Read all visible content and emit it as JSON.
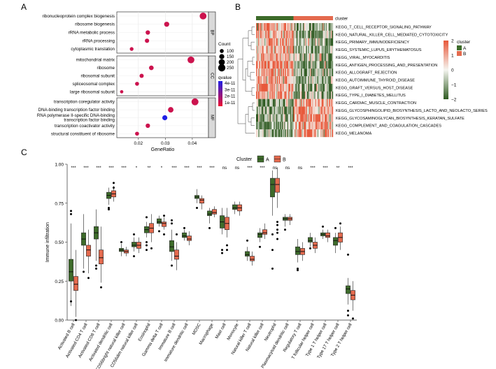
{
  "panels": {
    "a": "A",
    "b": "B",
    "c": "C"
  },
  "colors": {
    "group_a": "#3d6b2a",
    "group_b": "#e46a4e",
    "heat_low": "#2f5b22",
    "heat_mid": "#f5f5f0",
    "heat_high": "#e8583a",
    "qvalue_low": "#1f1fe6",
    "qvalue_high": "#ee1030",
    "strip_bg": "#d9d9d9"
  },
  "chart_data": [
    {
      "type": "scatter",
      "id": "go-dotplot",
      "xlabel": "GeneRatio",
      "xlim": [
        0.012,
        0.046
      ],
      "xticks": [
        0.02,
        0.03,
        0.04
      ],
      "xtick_labels": [
        "0.02",
        "0.03",
        "0.04"
      ],
      "facets": [
        {
          "name": "BP",
          "terms": [
            {
              "label": "ribonucleoprotein complex biogenesis",
              "x": 0.044,
              "count": 230,
              "qvalue": 1.5e-11
            },
            {
              "label": "ribosome biogenesis",
              "x": 0.0305,
              "count": 150,
              "qvalue": 1.5e-11
            },
            {
              "label": "rRNA metabolic process",
              "x": 0.0235,
              "count": 120,
              "qvalue": 1.5e-11
            },
            {
              "label": "rRNA processing",
              "x": 0.0232,
              "count": 115,
              "qvalue": 1.5e-11
            },
            {
              "label": "cytoplasmic translation",
              "x": 0.0175,
              "count": 90,
              "qvalue": 1.5e-11
            }
          ]
        },
        {
          "name": "CC",
          "terms": [
            {
              "label": "mitochondrial matrix",
              "x": 0.0395,
              "count": 230,
              "qvalue": 1.5e-11
            },
            {
              "label": "ribosome",
              "x": 0.0248,
              "count": 130,
              "qvalue": 1.5e-11
            },
            {
              "label": "ribosomal subunit",
              "x": 0.0212,
              "count": 110,
              "qvalue": 1.5e-11
            },
            {
              "label": "spliceosomal complex",
              "x": 0.0195,
              "count": 100,
              "qvalue": 1.5e-11
            },
            {
              "label": "large ribosomal subunit",
              "x": 0.0138,
              "count": 70,
              "qvalue": 1.5e-11
            }
          ]
        },
        {
          "name": "MF",
          "terms": [
            {
              "label": "transcription coregulator activity",
              "x": 0.041,
              "count": 235,
              "qvalue": 1.5e-11
            },
            {
              "label": "DNA-binding transcription factor binding",
              "x": 0.032,
              "count": 170,
              "qvalue": 1.5e-11
            },
            {
              "label": "RNA polymerase II-specific DNA-binding transcription factor binding",
              "x": 0.0298,
              "count": 150,
              "qvalue": 4.2e-11
            },
            {
              "label": "transcription coactivator activity",
              "x": 0.0235,
              "count": 120,
              "qvalue": 1.5e-11
            },
            {
              "label": "structural constituent of ribosome",
              "x": 0.0195,
              "count": 100,
              "qvalue": 1.5e-11
            }
          ]
        }
      ],
      "size_legend": {
        "title": "Count",
        "values": [
          100,
          150,
          200,
          250
        ],
        "labels": [
          "100",
          "150",
          "200",
          "250"
        ]
      },
      "color_legend": {
        "title": "qvalue",
        "labels": [
          "4e-11",
          "3e-11",
          "2e-11",
          "1e-11"
        ]
      }
    },
    {
      "type": "heatmap",
      "id": "kegg-heatmap",
      "title": "cluster",
      "column_groups": [
        {
          "name": "A",
          "samples": 36
        },
        {
          "name": "B",
          "samples": 38
        }
      ],
      "rows": [
        {
          "label": "KEGG_T_CELL_RECEPTOR_SIGNALING_PATHWAY",
          "a_mean": 0.5,
          "b_mean": -0.45
        },
        {
          "label": "KEGG_NATURAL_KILLER_CELL_MEDIATED_CYTOTOXICITY",
          "a_mean": 0.55,
          "b_mean": -0.5
        },
        {
          "label": "KEGG_PRIMARY_IMMUNODEFICIENCY",
          "a_mean": 0.5,
          "b_mean": -0.45
        },
        {
          "label": "KEGG_SYSTEMIC_LUPUS_ERYTHEMATOSUS",
          "a_mean": 0.45,
          "b_mean": -0.4
        },
        {
          "label": "KEGG_VIRAL_MYOCARDITIS",
          "a_mean": 0.5,
          "b_mean": -0.45
        },
        {
          "label": "KEGG_ANTIGEN_PROCESSING_AND_PRESENTATION",
          "a_mean": 0.55,
          "b_mean": -0.5
        },
        {
          "label": "KEGG_ALLOGRAFT_REJECTION",
          "a_mean": 0.55,
          "b_mean": -0.5
        },
        {
          "label": "KEGG_AUTOIMMUNE_THYROID_DISEASE",
          "a_mean": 0.5,
          "b_mean": -0.45
        },
        {
          "label": "KEGG_GRAFT_VERSUS_HOST_DISEASE",
          "a_mean": 0.55,
          "b_mean": -0.5
        },
        {
          "label": "KEGG_TYPE_I_DIABETES_MELLITUS",
          "a_mean": 0.5,
          "b_mean": -0.45
        },
        {
          "label": "KEGG_CARDIAC_MUSCLE_CONTRACTION",
          "a_mean": -0.5,
          "b_mean": 0.45
        },
        {
          "label": "KEGG_GLYCOSPHINGOLIPID_BIOSYNTHESIS_LACTO_AND_NEOLACTO_SERIES",
          "a_mean": -0.45,
          "b_mean": 0.4
        },
        {
          "label": "KEGG_GLYCOSAMINOGLYCAN_BIOSYNTHESIS_KERATAN_SULFATE",
          "a_mean": -0.5,
          "b_mean": 0.45
        },
        {
          "label": "KEGG_COMPLEMENT_AND_COAGULATION_CASCADES",
          "a_mean": -0.45,
          "b_mean": 0.4
        },
        {
          "label": "KEGG_MELANOMA",
          "a_mean": -0.5,
          "b_mean": 0.45
        }
      ],
      "colorbar": {
        "min": -2,
        "max": 2,
        "ticks": [
          2,
          1,
          0,
          -1,
          -2
        ],
        "tick_labels": [
          "2",
          "1",
          "0",
          "−1",
          "−2"
        ]
      },
      "legend": {
        "title": "cluster",
        "items": [
          "A",
          "B"
        ]
      }
    },
    {
      "type": "box",
      "id": "immune-boxplot",
      "ylabel": "Immune infiltration",
      "ylim": [
        0,
        1
      ],
      "yticks": [
        0,
        0.25,
        0.5,
        0.75,
        1
      ],
      "ytick_labels": [
        "0.00",
        "0.25",
        "0.50",
        "0.75",
        "1.00"
      ],
      "legend": {
        "title": "Cluster",
        "items": [
          "A",
          "B"
        ]
      },
      "categories": [
        {
          "label": "Activated B cell",
          "sig": "***",
          "A": {
            "q1": 0.25,
            "med": 0.31,
            "q3": 0.39,
            "lo": 0.09,
            "hi": 0.62,
            "out": [
              0.68,
              0.7,
              0.12
            ]
          },
          "B": {
            "q1": 0.19,
            "med": 0.23,
            "q3": 0.28,
            "lo": 0.02,
            "hi": 0.45,
            "out": [
              0.0
            ]
          }
        },
        {
          "label": "Activated CD4 T cell",
          "sig": "***",
          "A": {
            "q1": 0.48,
            "med": 0.52,
            "q3": 0.56,
            "lo": 0.33,
            "hi": 0.68,
            "out": [
              0.31
            ]
          },
          "B": {
            "q1": 0.41,
            "med": 0.45,
            "q3": 0.48,
            "lo": 0.3,
            "hi": 0.58,
            "out": [
              0.27
            ]
          }
        },
        {
          "label": "Activated CD8 T cell",
          "sig": "***",
          "A": {
            "q1": 0.52,
            "med": 0.56,
            "q3": 0.6,
            "lo": 0.38,
            "hi": 0.71,
            "out": [
              0.33,
              0.35
            ]
          },
          "B": {
            "q1": 0.36,
            "med": 0.4,
            "q3": 0.45,
            "lo": 0.24,
            "hi": 0.6,
            "out": [
              0.21
            ]
          }
        },
        {
          "label": "Activated dendritic cell",
          "sig": "***",
          "A": {
            "q1": 0.78,
            "med": 0.8,
            "q3": 0.82,
            "lo": 0.74,
            "hi": 0.85,
            "out": [
              0.72,
              0.71
            ]
          },
          "B": {
            "q1": 0.79,
            "med": 0.81,
            "q3": 0.83,
            "lo": 0.76,
            "hi": 0.86,
            "out": [
              0.88,
              0.85
            ]
          }
        },
        {
          "label": "CD56bright natural killer cell",
          "sig": "***",
          "A": {
            "q1": 0.44,
            "med": 0.45,
            "q3": 0.46,
            "lo": 0.41,
            "hi": 0.49,
            "out": [
              0.5
            ]
          },
          "B": {
            "q1": 0.43,
            "med": 0.44,
            "q3": 0.45,
            "lo": 0.41,
            "hi": 0.47,
            "out": []
          }
        },
        {
          "label": "CD56dim natural killer cell",
          "sig": "*",
          "A": {
            "q1": 0.47,
            "med": 0.48,
            "q3": 0.5,
            "lo": 0.44,
            "hi": 0.53,
            "out": [
              0.55,
              0.41
            ]
          },
          "B": {
            "q1": 0.46,
            "med": 0.48,
            "q3": 0.5,
            "lo": 0.43,
            "hi": 0.53,
            "out": []
          }
        },
        {
          "label": "Eosinophil",
          "sig": "**",
          "A": {
            "q1": 0.56,
            "med": 0.58,
            "q3": 0.6,
            "lo": 0.53,
            "hi": 0.63,
            "out": [
              0.45,
              0.48,
              0.5,
              0.66
            ]
          },
          "B": {
            "q1": 0.56,
            "med": 0.59,
            "q3": 0.62,
            "lo": 0.5,
            "hi": 0.68,
            "out": [
              0.46
            ]
          }
        },
        {
          "label": "Gamma delta T cell",
          "sig": "*",
          "A": {
            "q1": 0.62,
            "med": 0.63,
            "q3": 0.65,
            "lo": 0.6,
            "hi": 0.67,
            "out": [
              0.57
            ]
          },
          "B": {
            "q1": 0.6,
            "med": 0.62,
            "q3": 0.63,
            "lo": 0.58,
            "hi": 0.66,
            "out": [
              0.55,
              0.67
            ]
          }
        },
        {
          "label": "Immature  B cell",
          "sig": "***",
          "A": {
            "q1": 0.44,
            "med": 0.47,
            "q3": 0.51,
            "lo": 0.38,
            "hi": 0.58,
            "out": [
              0.64,
              0.62,
              0.35
            ]
          },
          "B": {
            "q1": 0.39,
            "med": 0.41,
            "q3": 0.45,
            "lo": 0.32,
            "hi": 0.5,
            "out": [
              0.55
            ]
          }
        },
        {
          "label": "Immature dendritic cell",
          "sig": "***",
          "A": {
            "q1": 0.53,
            "med": 0.54,
            "q3": 0.56,
            "lo": 0.51,
            "hi": 0.58,
            "out": [
              0.59
            ]
          },
          "B": {
            "q1": 0.51,
            "med": 0.52,
            "q3": 0.54,
            "lo": 0.48,
            "hi": 0.57,
            "out": []
          }
        },
        {
          "label": "MDSC",
          "sig": "***",
          "A": {
            "q1": 0.78,
            "med": 0.79,
            "q3": 0.8,
            "lo": 0.75,
            "hi": 0.84,
            "out": [
              0.72
            ]
          },
          "B": {
            "q1": 0.75,
            "med": 0.77,
            "q3": 0.78,
            "lo": 0.71,
            "hi": 0.8,
            "out": []
          }
        },
        {
          "label": "Macrophage",
          "sig": "***",
          "A": {
            "q1": 0.67,
            "med": 0.68,
            "q3": 0.7,
            "lo": 0.62,
            "hi": 0.72,
            "out": [
              0.59
            ]
          },
          "B": {
            "q1": 0.68,
            "med": 0.69,
            "q3": 0.71,
            "lo": 0.66,
            "hi": 0.73,
            "out": []
          }
        },
        {
          "label": "Mast cell",
          "sig": "ns",
          "A": {
            "q1": 0.59,
            "med": 0.63,
            "q3": 0.67,
            "lo": 0.55,
            "hi": 0.72,
            "out": [
              0.43,
              0.45
            ]
          },
          "B": {
            "q1": 0.58,
            "med": 0.62,
            "q3": 0.66,
            "lo": 0.53,
            "hi": 0.72,
            "out": [
              0.45,
              0.48
            ]
          }
        },
        {
          "label": "Monocyte",
          "sig": "ns",
          "A": {
            "q1": 0.71,
            "med": 0.72,
            "q3": 0.74,
            "lo": 0.68,
            "hi": 0.76,
            "out": []
          },
          "B": {
            "q1": 0.7,
            "med": 0.72,
            "q3": 0.74,
            "lo": 0.67,
            "hi": 0.76,
            "out": []
          }
        },
        {
          "label": "Natural killer T cell",
          "sig": "***",
          "A": {
            "q1": 0.41,
            "med": 0.42,
            "q3": 0.44,
            "lo": 0.38,
            "hi": 0.47,
            "out": [
              0.51
            ]
          },
          "B": {
            "q1": 0.38,
            "med": 0.39,
            "q3": 0.41,
            "lo": 0.35,
            "hi": 0.44,
            "out": []
          }
        },
        {
          "label": "Natural killer cell",
          "sig": "***",
          "A": {
            "q1": 0.53,
            "med": 0.55,
            "q3": 0.56,
            "lo": 0.5,
            "hi": 0.59,
            "out": [
              0.47
            ]
          },
          "B": {
            "q1": 0.55,
            "med": 0.56,
            "q3": 0.58,
            "lo": 0.52,
            "hi": 0.62,
            "out": []
          }
        },
        {
          "label": "Neutrophil",
          "sig": "ns",
          "A": {
            "q1": 0.79,
            "med": 0.87,
            "q3": 0.91,
            "lo": 0.67,
            "hi": 0.96,
            "out": [
              0.55,
              0.45,
              0.33
            ]
          },
          "B": {
            "q1": 0.82,
            "med": 0.87,
            "q3": 0.91,
            "lo": 0.72,
            "hi": 0.98,
            "out": [
              0.63,
              0.61,
              0.58,
              0.56,
              0.52
            ]
          }
        },
        {
          "label": "Plasmacytoid dendritic cell",
          "sig": "ns",
          "A": {
            "q1": 0.64,
            "med": 0.65,
            "q3": 0.66,
            "lo": 0.6,
            "hi": 0.68,
            "out": [
              0.58
            ]
          },
          "B": {
            "q1": 0.64,
            "med": 0.65,
            "q3": 0.66,
            "lo": 0.61,
            "hi": 0.68,
            "out": []
          }
        },
        {
          "label": "Regulatory T cell",
          "sig": "ns",
          "A": {
            "q1": 0.42,
            "med": 0.44,
            "q3": 0.47,
            "lo": 0.37,
            "hi": 0.52,
            "out": [
              0.33,
              0.32
            ]
          },
          "B": {
            "q1": 0.42,
            "med": 0.44,
            "q3": 0.46,
            "lo": 0.38,
            "hi": 0.5,
            "out": []
          }
        },
        {
          "label": "T follicular helper cell",
          "sig": "***",
          "A": {
            "q1": 0.5,
            "med": 0.51,
            "q3": 0.53,
            "lo": 0.47,
            "hi": 0.56,
            "out": [
              0.46
            ]
          },
          "B": {
            "q1": 0.46,
            "med": 0.48,
            "q3": 0.5,
            "lo": 0.43,
            "hi": 0.53,
            "out": []
          }
        },
        {
          "label": "Type 1 T helper cell",
          "sig": "***",
          "A": {
            "q1": 0.54,
            "med": 0.55,
            "q3": 0.56,
            "lo": 0.52,
            "hi": 0.58,
            "out": [
              0.6
            ]
          },
          "B": {
            "q1": 0.53,
            "med": 0.54,
            "q3": 0.56,
            "lo": 0.5,
            "hi": 0.58,
            "out": []
          }
        },
        {
          "label": "Type 17 T helper cell",
          "sig": "**",
          "A": {
            "q1": 0.48,
            "med": 0.51,
            "q3": 0.53,
            "lo": 0.43,
            "hi": 0.56,
            "out": [
              0.59
            ]
          },
          "B": {
            "q1": 0.5,
            "med": 0.53,
            "q3": 0.56,
            "lo": 0.45,
            "hi": 0.6,
            "out": [
              0.62
            ]
          }
        },
        {
          "label": "Type 2 T helper cell",
          "sig": "***",
          "A": {
            "q1": 0.17,
            "med": 0.2,
            "q3": 0.22,
            "lo": 0.1,
            "hi": 0.27,
            "out": [
              0.42,
              0.06,
              0.03
            ]
          },
          "B": {
            "q1": 0.13,
            "med": 0.16,
            "q3": 0.19,
            "lo": 0.06,
            "hi": 0.25,
            "out": [
              0.01
            ]
          }
        }
      ]
    }
  ]
}
